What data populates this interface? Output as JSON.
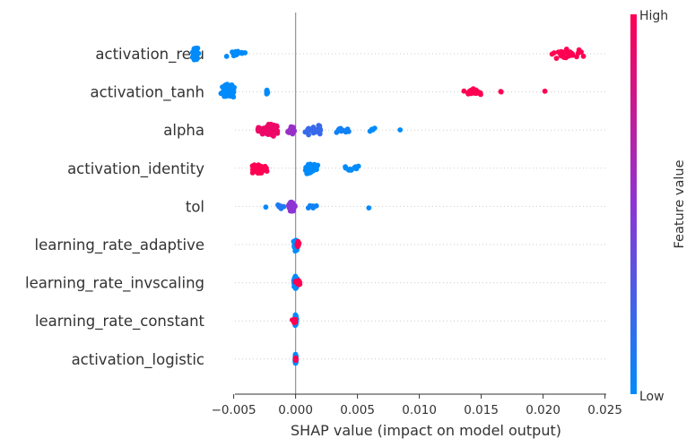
{
  "chart_data": {
    "type": "scatter",
    "subtype": "shap-beeswarm",
    "xlabel": "SHAP value (impact on model output)",
    "xlim": [
      -0.0049,
      0.0251
    ],
    "xticks": [
      -0.005,
      0.0,
      0.005,
      0.01,
      0.015,
      0.02,
      0.025
    ],
    "xtick_labels": [
      "−0.005",
      "0.000",
      "0.005",
      "0.010",
      "0.015",
      "0.020",
      "0.025"
    ],
    "grid": false,
    "colorbar": {
      "title": "Feature value",
      "high_label": "High",
      "low_label": "Low",
      "low_color": "#008bfb",
      "mid_color": "#8d35d4",
      "high_color": "#ff0052"
    },
    "features": [
      {
        "name": "activation_relu",
        "clusters": [
          {
            "x": -0.0081,
            "spread": 0.0003,
            "n": 75,
            "v": 0.0
          },
          {
            "x": -0.0048,
            "spread": 0.0012,
            "n": 16,
            "v": 0.0
          },
          {
            "x": 0.0219,
            "spread": 0.0018,
            "n": 34,
            "v": 1.0
          }
        ]
      },
      {
        "name": "activation_tanh",
        "clusters": [
          {
            "x": -0.0055,
            "spread": 0.0007,
            "n": 85,
            "v": 0.0
          },
          {
            "x": -0.0023,
            "spread": 0.0001,
            "n": 8,
            "v": 0.0
          },
          {
            "x": 0.0143,
            "spread": 0.0008,
            "n": 28,
            "v": 1.0
          },
          {
            "x": 0.0166,
            "spread": 0.0001,
            "n": 2,
            "v": 1.0
          },
          {
            "x": 0.0201,
            "spread": 0.0001,
            "n": 1,
            "v": 1.0
          }
        ]
      },
      {
        "name": "alpha",
        "clusters": [
          {
            "x": -0.0022,
            "spread": 0.0012,
            "n": 65,
            "v": 0.92
          },
          {
            "x": -0.0003,
            "spread": 0.0004,
            "n": 30,
            "v": 0.55
          },
          {
            "x": 0.0015,
            "spread": 0.0009,
            "n": 32,
            "v": 0.2
          },
          {
            "x": 0.0038,
            "spread": 0.001,
            "n": 12,
            "v": 0.06
          },
          {
            "x": 0.0062,
            "spread": 0.0007,
            "n": 4,
            "v": 0.0
          },
          {
            "x": 0.0084,
            "spread": 0.0001,
            "n": 1,
            "v": 0.0
          }
        ]
      },
      {
        "name": "activation_identity",
        "clusters": [
          {
            "x": -0.003,
            "spread": 0.001,
            "n": 42,
            "v": 1.0
          },
          {
            "x": 0.0012,
            "spread": 0.0007,
            "n": 52,
            "v": 0.0
          },
          {
            "x": 0.0045,
            "spread": 0.001,
            "n": 12,
            "v": 0.0
          }
        ]
      },
      {
        "name": "tol",
        "clusters": [
          {
            "x": -0.0003,
            "spread": 0.0004,
            "n": 45,
            "v": 0.5
          },
          {
            "x": -0.0012,
            "spread": 0.0006,
            "n": 8,
            "v": 0.1
          },
          {
            "x": 0.0014,
            "spread": 0.0006,
            "n": 6,
            "v": 0.05
          },
          {
            "x": -0.0024,
            "spread": 0.0001,
            "n": 1,
            "v": 0.0
          },
          {
            "x": 0.006,
            "spread": 0.0001,
            "n": 1,
            "v": 0.0
          }
        ]
      },
      {
        "name": "learning_rate_adaptive",
        "clusters": [
          {
            "x": 0.0,
            "spread": 0.0002,
            "n": 55,
            "v": 0.0
          },
          {
            "x": 0.0002,
            "spread": 0.0001,
            "n": 12,
            "v": 1.0
          }
        ]
      },
      {
        "name": "learning_rate_invscaling",
        "clusters": [
          {
            "x": 0.0,
            "spread": 0.0002,
            "n": 55,
            "v": 0.0
          },
          {
            "x": 0.0002,
            "spread": 0.0003,
            "n": 12,
            "v": 1.0
          }
        ]
      },
      {
        "name": "learning_rate_constant",
        "clusters": [
          {
            "x": 0.0,
            "spread": 0.0001,
            "n": 50,
            "v": 0.0
          },
          {
            "x": -0.0001,
            "spread": 0.0002,
            "n": 14,
            "v": 1.0
          }
        ]
      },
      {
        "name": "activation_logistic",
        "clusters": [
          {
            "x": 0.0,
            "spread": 5e-05,
            "n": 50,
            "v": 0.0
          },
          {
            "x": 0.0,
            "spread": 5e-05,
            "n": 8,
            "v": 1.0
          }
        ]
      }
    ]
  }
}
